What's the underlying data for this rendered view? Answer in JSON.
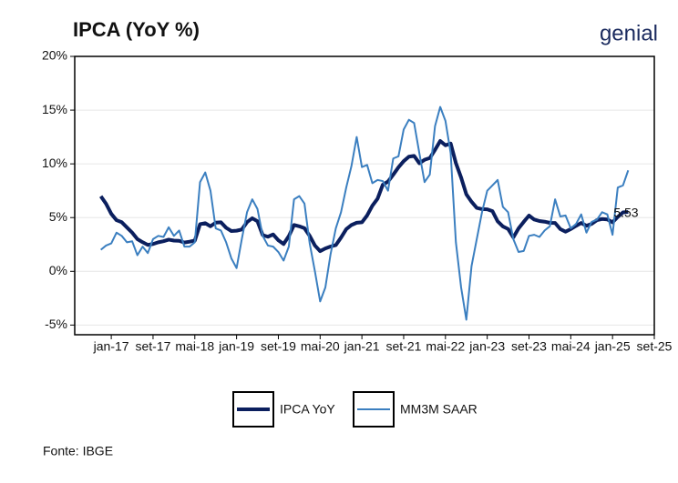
{
  "chart_data": {
    "type": "line",
    "title": "IPCA (YoY %)",
    "brand": "genial",
    "source": "Fonte: IBGE",
    "x": [
      "2016-11",
      "2016-12",
      "2017-01",
      "2017-02",
      "2017-03",
      "2017-04",
      "2017-05",
      "2017-06",
      "2017-07",
      "2017-08",
      "2017-09",
      "2017-10",
      "2017-11",
      "2017-12",
      "2018-01",
      "2018-02",
      "2018-03",
      "2018-04",
      "2018-05",
      "2018-06",
      "2018-07",
      "2018-08",
      "2018-09",
      "2018-10",
      "2018-11",
      "2018-12",
      "2019-01",
      "2019-02",
      "2019-03",
      "2019-04",
      "2019-05",
      "2019-06",
      "2019-07",
      "2019-08",
      "2019-09",
      "2019-10",
      "2019-11",
      "2019-12",
      "2020-01",
      "2020-02",
      "2020-03",
      "2020-04",
      "2020-05",
      "2020-06",
      "2020-07",
      "2020-08",
      "2020-09",
      "2020-10",
      "2020-11",
      "2020-12",
      "2021-01",
      "2021-02",
      "2021-03",
      "2021-04",
      "2021-05",
      "2021-06",
      "2021-07",
      "2021-08",
      "2021-09",
      "2021-10",
      "2021-11",
      "2021-12",
      "2022-01",
      "2022-02",
      "2022-03",
      "2022-04",
      "2022-05",
      "2022-06",
      "2022-07",
      "2022-08",
      "2022-09",
      "2022-10",
      "2022-11",
      "2022-12",
      "2023-01",
      "2023-02",
      "2023-03",
      "2023-04",
      "2023-05",
      "2023-06",
      "2023-07",
      "2023-08",
      "2023-09",
      "2023-10",
      "2023-11",
      "2023-12",
      "2024-01",
      "2024-02",
      "2024-03",
      "2024-04",
      "2024-05",
      "2024-06",
      "2024-07",
      "2024-08",
      "2024-09",
      "2024-10",
      "2024-11",
      "2024-12",
      "2025-01",
      "2025-02",
      "2025-03",
      "2025-04"
    ],
    "series": [
      {
        "name": "IPCA YoY",
        "color": "#0b1f5e",
        "width": 4,
        "label_last": true,
        "values": [
          6.99,
          6.29,
          5.35,
          4.76,
          4.57,
          4.08,
          3.6,
          3.0,
          2.71,
          2.46,
          2.54,
          2.7,
          2.8,
          2.95,
          2.86,
          2.84,
          2.68,
          2.76,
          2.86,
          4.39,
          4.48,
          4.19,
          4.53,
          4.56,
          4.05,
          3.75,
          3.78,
          3.89,
          4.58,
          4.94,
          4.66,
          3.37,
          3.22,
          3.43,
          2.89,
          2.54,
          3.27,
          4.31,
          4.19,
          4.01,
          3.3,
          2.4,
          1.88,
          2.13,
          2.31,
          2.44,
          3.14,
          3.92,
          4.31,
          4.52,
          4.56,
          5.2,
          6.1,
          6.76,
          8.06,
          8.35,
          8.99,
          9.68,
          10.25,
          10.67,
          10.74,
          10.06,
          10.38,
          10.54,
          11.3,
          12.13,
          11.73,
          11.89,
          10.07,
          8.73,
          7.17,
          6.47,
          5.9,
          5.79,
          5.77,
          5.6,
          4.65,
          4.18,
          3.94,
          3.16,
          3.99,
          4.61,
          5.19,
          4.82,
          4.68,
          4.62,
          4.51,
          4.5,
          3.93,
          3.69,
          3.93,
          4.23,
          4.5,
          4.24,
          4.42,
          4.76,
          4.87,
          4.83,
          4.56,
          5.06,
          5.48,
          5.53
        ]
      },
      {
        "name": "MM3M SAAR",
        "color": "#3b7fc0",
        "width": 2,
        "values": [
          2.0,
          2.4,
          2.6,
          3.6,
          3.3,
          2.7,
          2.8,
          1.5,
          2.3,
          1.7,
          3.0,
          3.3,
          3.2,
          4.1,
          3.3,
          3.8,
          2.3,
          2.3,
          2.7,
          8.3,
          9.2,
          7.5,
          4.0,
          3.8,
          2.7,
          1.2,
          0.3,
          3.0,
          5.5,
          6.7,
          5.8,
          3.3,
          2.4,
          2.3,
          1.8,
          1.0,
          2.3,
          6.7,
          7.0,
          6.3,
          2.6,
          0.0,
          -2.8,
          -1.5,
          1.6,
          4.0,
          5.5,
          7.8,
          9.8,
          12.5,
          9.7,
          9.9,
          8.2,
          8.5,
          8.4,
          7.5,
          10.5,
          10.7,
          13.2,
          14.1,
          13.8,
          11.0,
          8.3,
          9.0,
          13.5,
          15.3,
          14.0,
          11.0,
          2.7,
          -1.5,
          -4.5,
          0.5,
          3.0,
          5.5,
          7.5,
          8.0,
          8.5,
          6.0,
          5.5,
          3.0,
          1.8,
          1.9,
          3.3,
          3.4,
          3.2,
          3.8,
          4.2,
          6.7,
          5.1,
          5.2,
          4.0,
          4.4,
          5.3,
          3.6,
          4.6,
          4.8,
          5.5,
          5.3,
          3.4,
          7.8,
          8.0,
          9.4
        ]
      }
    ],
    "xlim": [
      "2016-06",
      "2025-09"
    ],
    "xticks": [
      {
        "value": "2017-01",
        "label": "jan-17"
      },
      {
        "value": "2017-09",
        "label": "set-17"
      },
      {
        "value": "2018-05",
        "label": "mai-18"
      },
      {
        "value": "2019-01",
        "label": "jan-19"
      },
      {
        "value": "2019-09",
        "label": "set-19"
      },
      {
        "value": "2020-05",
        "label": "mai-20"
      },
      {
        "value": "2021-01",
        "label": "jan-21"
      },
      {
        "value": "2021-09",
        "label": "set-21"
      },
      {
        "value": "2022-05",
        "label": "mai-22"
      },
      {
        "value": "2023-01",
        "label": "jan-23"
      },
      {
        "value": "2023-09",
        "label": "set-23"
      },
      {
        "value": "2024-05",
        "label": "mai-24"
      },
      {
        "value": "2025-01",
        "label": "jan-25"
      },
      {
        "value": "2025-09",
        "label": "set-25"
      }
    ],
    "ylim": [
      -5.9,
      20
    ],
    "yticks": [
      {
        "value": -5,
        "label": "-5%"
      },
      {
        "value": 0,
        "label": "0%"
      },
      {
        "value": 5,
        "label": "5%"
      },
      {
        "value": 10,
        "label": "10%"
      },
      {
        "value": 15,
        "label": "15%"
      },
      {
        "value": 20,
        "label": "20%"
      }
    ],
    "grid": true
  }
}
